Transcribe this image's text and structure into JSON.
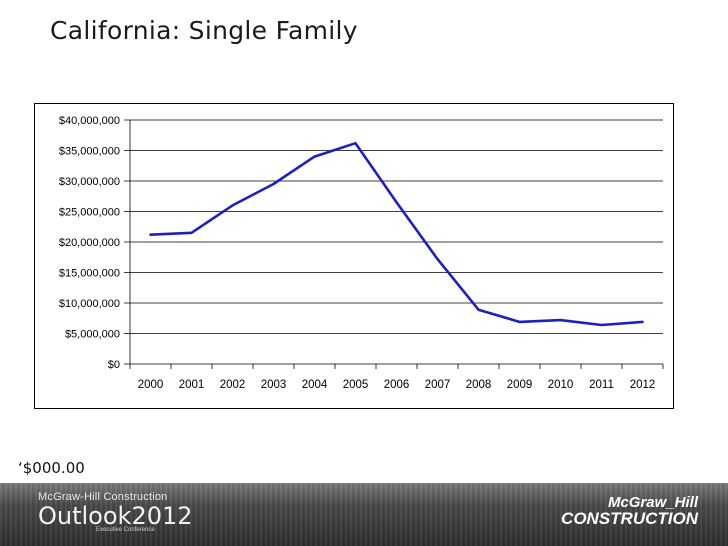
{
  "slide": {
    "title": "California:  Single Family",
    "units_note": "‘$000.00"
  },
  "footer": {
    "org": "McGraw-Hill Construction",
    "event": "Outlook2012",
    "event_sub": "Executive Conference",
    "logo_line1": "McGraw_Hill",
    "logo_line2": "CONSTRUCTION"
  },
  "colors": {
    "series": "#1f1fbf",
    "gridline": "#000000",
    "footer": "#4a4a4a"
  },
  "chart_data": {
    "type": "line",
    "title": "",
    "xlabel": "",
    "ylabel": "",
    "x": [
      "2000",
      "2001",
      "2002",
      "2003",
      "2004",
      "2005",
      "2006",
      "2007",
      "2008",
      "2009",
      "2010",
      "2011",
      "2012"
    ],
    "series": [
      {
        "values": [
          21200000,
          21500000,
          26000000,
          29500000,
          34000000,
          36200000,
          26500000,
          17200000,
          8900000,
          6900000,
          7200000,
          6400000,
          6900000
        ]
      }
    ],
    "ylim": [
      0,
      40000000
    ],
    "yticks": [
      0,
      5000000,
      10000000,
      15000000,
      20000000,
      25000000,
      30000000,
      35000000,
      40000000
    ],
    "ytick_labels": [
      "$0",
      "$5,000,000",
      "$10,000,000",
      "$15,000,000",
      "$20,000,000",
      "$25,000,000",
      "$30,000,000",
      "$35,000,000",
      "$40,000,000"
    ],
    "grid": true,
    "legend": "none"
  }
}
